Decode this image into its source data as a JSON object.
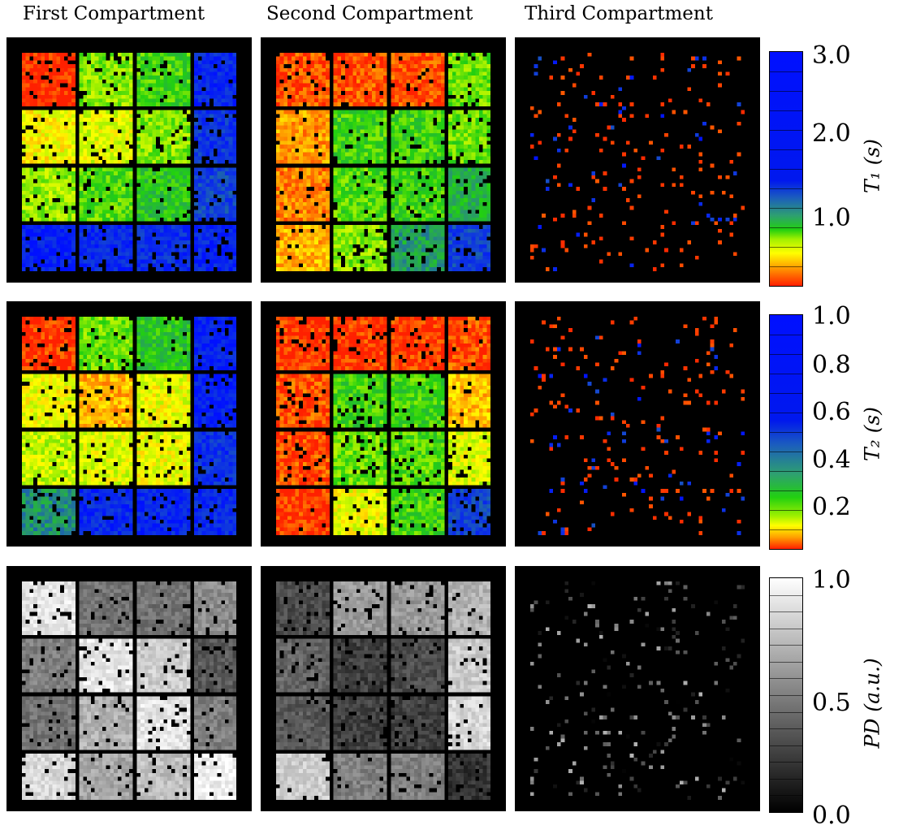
{
  "columns": [
    "First Compartment",
    "Second Compartment",
    "Third Compartment"
  ],
  "rows": [
    {
      "name": "t1",
      "colorbar": {
        "label": "T₁ (s)",
        "range": [
          0,
          3.0
        ],
        "ticks": [
          "3.0",
          "2.0",
          "1.0"
        ],
        "gradient": "linear-gradient(to bottom, #0010ff 0%, #0018ee 55%, #1a5ac0 62%, #2ea070 70%, #22d010 76%, #a0f000 80%, #ffff00 86%, #ffa000 92%, #ff2000 100%)",
        "segments": 12
      },
      "panels": [
        "t1-first",
        "t1-second",
        "t1-third"
      ]
    },
    {
      "name": "t2",
      "colorbar": {
        "label": "T₂ (s)",
        "range": [
          0,
          1.0
        ],
        "ticks": [
          "1.0",
          "0.8",
          "0.6",
          "0.4",
          "0.2"
        ],
        "gradient": "linear-gradient(to bottom, #0010ff 0%, #0018ee 45%, #1a5ac0 55%, #2ea070 68%, #22d010 78%, #a0f000 86%, #ffff00 90%, #ffa000 95%, #ff2000 100%)",
        "segments": 12
      },
      "panels": [
        "t2-first",
        "t2-second",
        "t2-third"
      ]
    },
    {
      "name": "pd",
      "colorbar": {
        "label": "PD (a.u.)",
        "range": [
          0,
          1.0
        ],
        "ticks": [
          "1.0",
          "0.5",
          "0.0"
        ],
        "gradient": "linear-gradient(to bottom, #ffffff 0%, #000000 100%)",
        "segments": 14
      },
      "panels": [
        "pd-first",
        "pd-second",
        "pd-third"
      ]
    }
  ]
}
